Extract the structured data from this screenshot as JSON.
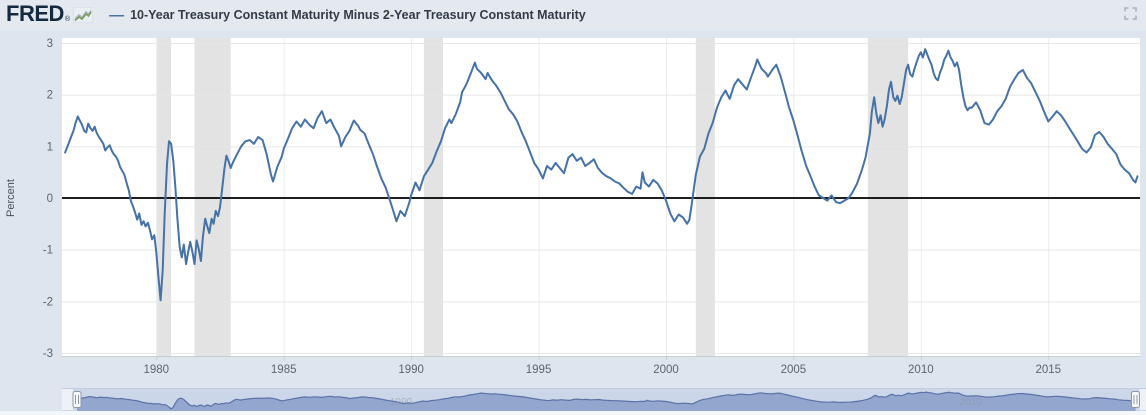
{
  "header": {
    "logo_text": "FRED",
    "logo_reg": "®",
    "legend_dash": "—",
    "title": "10-Year Treasury Constant Maturity Minus 2-Year Treasury Constant Maturity",
    "icons": [
      {
        "name": "fred-sparkline-icon",
        "shape": "green-zigzag"
      },
      {
        "name": "fullscreen-icon",
        "shape": "corner-brackets"
      }
    ]
  },
  "chart_data": {
    "type": "line",
    "title": "10-Year Treasury Constant Maturity Minus 2-Year Treasury Constant Maturity",
    "xlabel": "",
    "ylabel": "Percent",
    "ylim": [
      -3,
      3
    ],
    "xlim": [
      1976.3,
      2018.6
    ],
    "y_ticks": [
      3,
      2,
      1,
      0,
      -1,
      -2,
      -3
    ],
    "x_ticks": [
      1980,
      1985,
      1990,
      1995,
      2000,
      2005,
      2010,
      2015
    ],
    "grid": true,
    "zero_line": true,
    "legend_position": "top-left",
    "colors": {
      "series": "#4572a7",
      "recession_band": "#e3e3e3",
      "zero_line": "#000000",
      "grid_h": "#e6e6e6",
      "grid_v": "#ececec",
      "axis_line": "#c9ced4",
      "tick_text": "#606469",
      "plot_bg": "#ffffff",
      "page_bg": "#dde5ef"
    },
    "recessions": [
      [
        1980.0,
        1980.58
      ],
      [
        1981.5,
        1982.92
      ],
      [
        1990.5,
        1991.25
      ],
      [
        2001.17,
        2001.92
      ],
      [
        2007.92,
        2009.5
      ]
    ],
    "points": [
      [
        1976.42,
        0.88
      ],
      [
        1976.5,
        0.98
      ],
      [
        1976.58,
        1.08
      ],
      [
        1976.67,
        1.2
      ],
      [
        1976.75,
        1.3
      ],
      [
        1976.83,
        1.45
      ],
      [
        1976.92,
        1.58
      ],
      [
        1977.0,
        1.5
      ],
      [
        1977.08,
        1.42
      ],
      [
        1977.17,
        1.3
      ],
      [
        1977.25,
        1.27
      ],
      [
        1977.33,
        1.44
      ],
      [
        1977.42,
        1.35
      ],
      [
        1977.5,
        1.3
      ],
      [
        1977.58,
        1.38
      ],
      [
        1977.67,
        1.25
      ],
      [
        1977.75,
        1.18
      ],
      [
        1977.83,
        1.12
      ],
      [
        1977.92,
        1.05
      ],
      [
        1978.0,
        0.92
      ],
      [
        1978.08,
        0.98
      ],
      [
        1978.17,
        1.02
      ],
      [
        1978.25,
        0.92
      ],
      [
        1978.33,
        0.85
      ],
      [
        1978.42,
        0.8
      ],
      [
        1978.5,
        0.72
      ],
      [
        1978.58,
        0.6
      ],
      [
        1978.67,
        0.52
      ],
      [
        1978.75,
        0.45
      ],
      [
        1978.83,
        0.3
      ],
      [
        1978.92,
        0.15
      ],
      [
        1979.0,
        -0.05
      ],
      [
        1979.08,
        -0.15
      ],
      [
        1979.17,
        -0.28
      ],
      [
        1979.25,
        -0.42
      ],
      [
        1979.33,
        -0.3
      ],
      [
        1979.42,
        -0.52
      ],
      [
        1979.5,
        -0.45
      ],
      [
        1979.58,
        -0.55
      ],
      [
        1979.67,
        -0.48
      ],
      [
        1979.75,
        -0.62
      ],
      [
        1979.83,
        -0.8
      ],
      [
        1979.92,
        -0.72
      ],
      [
        1980.0,
        -1.05
      ],
      [
        1980.08,
        -1.5
      ],
      [
        1980.17,
        -1.98
      ],
      [
        1980.25,
        -1.4
      ],
      [
        1980.33,
        -0.3
      ],
      [
        1980.42,
        0.65
      ],
      [
        1980.5,
        1.1
      ],
      [
        1980.58,
        1.05
      ],
      [
        1980.67,
        0.7
      ],
      [
        1980.75,
        0.2
      ],
      [
        1980.83,
        -0.4
      ],
      [
        1980.92,
        -0.95
      ],
      [
        1981.0,
        -1.15
      ],
      [
        1981.08,
        -0.9
      ],
      [
        1981.17,
        -1.28
      ],
      [
        1981.25,
        -1.05
      ],
      [
        1981.33,
        -0.85
      ],
      [
        1981.42,
        -1.05
      ],
      [
        1981.5,
        -1.28
      ],
      [
        1981.58,
        -0.82
      ],
      [
        1981.67,
        -1.0
      ],
      [
        1981.75,
        -1.22
      ],
      [
        1981.83,
        -0.75
      ],
      [
        1981.92,
        -0.4
      ],
      [
        1982.0,
        -0.55
      ],
      [
        1982.08,
        -0.68
      ],
      [
        1982.17,
        -0.4
      ],
      [
        1982.25,
        -0.5
      ],
      [
        1982.33,
        -0.25
      ],
      [
        1982.42,
        -0.35
      ],
      [
        1982.5,
        -0.18
      ],
      [
        1982.58,
        0.15
      ],
      [
        1982.67,
        0.55
      ],
      [
        1982.75,
        0.82
      ],
      [
        1982.83,
        0.72
      ],
      [
        1982.92,
        0.58
      ],
      [
        1983.0,
        0.68
      ],
      [
        1983.17,
        0.85
      ],
      [
        1983.33,
        1.0
      ],
      [
        1983.5,
        1.1
      ],
      [
        1983.67,
        1.12
      ],
      [
        1983.83,
        1.05
      ],
      [
        1984.0,
        1.18
      ],
      [
        1984.17,
        1.12
      ],
      [
        1984.33,
        0.85
      ],
      [
        1984.5,
        0.45
      ],
      [
        1984.58,
        0.32
      ],
      [
        1984.75,
        0.6
      ],
      [
        1984.92,
        0.8
      ],
      [
        1985.0,
        0.95
      ],
      [
        1985.17,
        1.15
      ],
      [
        1985.33,
        1.35
      ],
      [
        1985.5,
        1.48
      ],
      [
        1985.67,
        1.38
      ],
      [
        1985.83,
        1.52
      ],
      [
        1986.0,
        1.42
      ],
      [
        1986.17,
        1.35
      ],
      [
        1986.33,
        1.55
      ],
      [
        1986.5,
        1.68
      ],
      [
        1986.67,
        1.45
      ],
      [
        1986.83,
        1.52
      ],
      [
        1987.0,
        1.35
      ],
      [
        1987.17,
        1.2
      ],
      [
        1987.25,
        1.0
      ],
      [
        1987.42,
        1.18
      ],
      [
        1987.58,
        1.3
      ],
      [
        1987.75,
        1.5
      ],
      [
        1987.92,
        1.4
      ],
      [
        1988.0,
        1.32
      ],
      [
        1988.17,
        1.25
      ],
      [
        1988.33,
        1.05
      ],
      [
        1988.5,
        0.85
      ],
      [
        1988.67,
        0.6
      ],
      [
        1988.83,
        0.38
      ],
      [
        1989.0,
        0.2
      ],
      [
        1989.17,
        -0.05
      ],
      [
        1989.33,
        -0.3
      ],
      [
        1989.42,
        -0.45
      ],
      [
        1989.58,
        -0.25
      ],
      [
        1989.75,
        -0.35
      ],
      [
        1989.92,
        -0.1
      ],
      [
        1990.0,
        0.05
      ],
      [
        1990.17,
        0.3
      ],
      [
        1990.33,
        0.15
      ],
      [
        1990.5,
        0.42
      ],
      [
        1990.67,
        0.55
      ],
      [
        1990.83,
        0.68
      ],
      [
        1991.0,
        0.9
      ],
      [
        1991.17,
        1.1
      ],
      [
        1991.33,
        1.35
      ],
      [
        1991.5,
        1.52
      ],
      [
        1991.58,
        1.45
      ],
      [
        1991.75,
        1.62
      ],
      [
        1991.92,
        1.85
      ],
      [
        1992.0,
        2.05
      ],
      [
        1992.17,
        2.2
      ],
      [
        1992.33,
        2.4
      ],
      [
        1992.5,
        2.62
      ],
      [
        1992.58,
        2.5
      ],
      [
        1992.75,
        2.42
      ],
      [
        1992.92,
        2.3
      ],
      [
        1993.0,
        2.42
      ],
      [
        1993.17,
        2.28
      ],
      [
        1993.33,
        2.18
      ],
      [
        1993.5,
        2.05
      ],
      [
        1993.67,
        1.88
      ],
      [
        1993.83,
        1.72
      ],
      [
        1994.0,
        1.62
      ],
      [
        1994.17,
        1.48
      ],
      [
        1994.33,
        1.28
      ],
      [
        1994.5,
        1.1
      ],
      [
        1994.67,
        0.88
      ],
      [
        1994.83,
        0.68
      ],
      [
        1995.0,
        0.55
      ],
      [
        1995.17,
        0.38
      ],
      [
        1995.33,
        0.62
      ],
      [
        1995.5,
        0.55
      ],
      [
        1995.67,
        0.68
      ],
      [
        1995.83,
        0.58
      ],
      [
        1996.0,
        0.48
      ],
      [
        1996.17,
        0.78
      ],
      [
        1996.33,
        0.85
      ],
      [
        1996.5,
        0.72
      ],
      [
        1996.67,
        0.78
      ],
      [
        1996.83,
        0.62
      ],
      [
        1997.0,
        0.68
      ],
      [
        1997.17,
        0.75
      ],
      [
        1997.33,
        0.58
      ],
      [
        1997.5,
        0.48
      ],
      [
        1997.67,
        0.42
      ],
      [
        1997.83,
        0.38
      ],
      [
        1998.0,
        0.32
      ],
      [
        1998.17,
        0.28
      ],
      [
        1998.33,
        0.2
      ],
      [
        1998.5,
        0.12
      ],
      [
        1998.67,
        0.08
      ],
      [
        1998.83,
        0.22
      ],
      [
        1999.0,
        0.18
      ],
      [
        1999.08,
        0.5
      ],
      [
        1999.17,
        0.3
      ],
      [
        1999.33,
        0.22
      ],
      [
        1999.5,
        0.35
      ],
      [
        1999.67,
        0.28
      ],
      [
        1999.83,
        0.15
      ],
      [
        2000.0,
        -0.05
      ],
      [
        2000.17,
        -0.3
      ],
      [
        2000.33,
        -0.45
      ],
      [
        2000.5,
        -0.32
      ],
      [
        2000.67,
        -0.38
      ],
      [
        2000.83,
        -0.5
      ],
      [
        2000.92,
        -0.42
      ],
      [
        2001.0,
        -0.15
      ],
      [
        2001.17,
        0.45
      ],
      [
        2001.33,
        0.8
      ],
      [
        2001.5,
        0.95
      ],
      [
        2001.67,
        1.25
      ],
      [
        2001.83,
        1.45
      ],
      [
        2002.0,
        1.75
      ],
      [
        2002.17,
        1.95
      ],
      [
        2002.33,
        2.08
      ],
      [
        2002.5,
        1.92
      ],
      [
        2002.67,
        2.18
      ],
      [
        2002.83,
        2.3
      ],
      [
        2003.0,
        2.2
      ],
      [
        2003.17,
        2.1
      ],
      [
        2003.33,
        2.32
      ],
      [
        2003.5,
        2.55
      ],
      [
        2003.58,
        2.68
      ],
      [
        2003.75,
        2.5
      ],
      [
        2003.92,
        2.42
      ],
      [
        2004.0,
        2.35
      ],
      [
        2004.17,
        2.48
      ],
      [
        2004.33,
        2.58
      ],
      [
        2004.5,
        2.35
      ],
      [
        2004.67,
        2.05
      ],
      [
        2004.83,
        1.75
      ],
      [
        2005.0,
        1.5
      ],
      [
        2005.17,
        1.2
      ],
      [
        2005.33,
        0.9
      ],
      [
        2005.5,
        0.62
      ],
      [
        2005.67,
        0.42
      ],
      [
        2005.83,
        0.22
      ],
      [
        2006.0,
        0.05
      ],
      [
        2006.17,
        0.0
      ],
      [
        2006.33,
        -0.05
      ],
      [
        2006.5,
        0.05
      ],
      [
        2006.67,
        -0.08
      ],
      [
        2006.83,
        -0.1
      ],
      [
        2007.0,
        -0.05
      ],
      [
        2007.17,
        0.0
      ],
      [
        2007.33,
        0.12
      ],
      [
        2007.5,
        0.28
      ],
      [
        2007.67,
        0.52
      ],
      [
        2007.83,
        0.78
      ],
      [
        2008.0,
        1.25
      ],
      [
        2008.08,
        1.68
      ],
      [
        2008.17,
        1.95
      ],
      [
        2008.25,
        1.65
      ],
      [
        2008.33,
        1.45
      ],
      [
        2008.42,
        1.6
      ],
      [
        2008.5,
        1.38
      ],
      [
        2008.58,
        1.52
      ],
      [
        2008.67,
        1.78
      ],
      [
        2008.75,
        2.1
      ],
      [
        2008.83,
        2.25
      ],
      [
        2008.92,
        1.95
      ],
      [
        2009.0,
        1.88
      ],
      [
        2009.08,
        1.98
      ],
      [
        2009.17,
        1.82
      ],
      [
        2009.25,
        1.95
      ],
      [
        2009.33,
        2.2
      ],
      [
        2009.42,
        2.48
      ],
      [
        2009.5,
        2.58
      ],
      [
        2009.58,
        2.4
      ],
      [
        2009.67,
        2.35
      ],
      [
        2009.75,
        2.5
      ],
      [
        2009.83,
        2.62
      ],
      [
        2009.92,
        2.75
      ],
      [
        2010.0,
        2.82
      ],
      [
        2010.08,
        2.72
      ],
      [
        2010.17,
        2.88
      ],
      [
        2010.25,
        2.78
      ],
      [
        2010.33,
        2.68
      ],
      [
        2010.42,
        2.58
      ],
      [
        2010.5,
        2.42
      ],
      [
        2010.58,
        2.32
      ],
      [
        2010.67,
        2.28
      ],
      [
        2010.75,
        2.42
      ],
      [
        2010.83,
        2.52
      ],
      [
        2010.92,
        2.68
      ],
      [
        2011.0,
        2.75
      ],
      [
        2011.08,
        2.85
      ],
      [
        2011.17,
        2.72
      ],
      [
        2011.25,
        2.65
      ],
      [
        2011.33,
        2.55
      ],
      [
        2011.42,
        2.62
      ],
      [
        2011.5,
        2.48
      ],
      [
        2011.58,
        2.2
      ],
      [
        2011.67,
        1.95
      ],
      [
        2011.75,
        1.78
      ],
      [
        2011.83,
        1.7
      ],
      [
        2011.92,
        1.75
      ],
      [
        2012.0,
        1.75
      ],
      [
        2012.17,
        1.85
      ],
      [
        2012.33,
        1.7
      ],
      [
        2012.5,
        1.45
      ],
      [
        2012.67,
        1.42
      ],
      [
        2012.83,
        1.52
      ],
      [
        2013.0,
        1.68
      ],
      [
        2013.17,
        1.78
      ],
      [
        2013.33,
        1.92
      ],
      [
        2013.5,
        2.15
      ],
      [
        2013.67,
        2.3
      ],
      [
        2013.83,
        2.42
      ],
      [
        2014.0,
        2.48
      ],
      [
        2014.17,
        2.32
      ],
      [
        2014.33,
        2.22
      ],
      [
        2014.5,
        2.05
      ],
      [
        2014.67,
        1.88
      ],
      [
        2014.83,
        1.68
      ],
      [
        2015.0,
        1.48
      ],
      [
        2015.17,
        1.58
      ],
      [
        2015.33,
        1.68
      ],
      [
        2015.5,
        1.6
      ],
      [
        2015.67,
        1.48
      ],
      [
        2015.83,
        1.35
      ],
      [
        2016.0,
        1.22
      ],
      [
        2016.17,
        1.08
      ],
      [
        2016.33,
        0.95
      ],
      [
        2016.5,
        0.88
      ],
      [
        2016.67,
        0.98
      ],
      [
        2016.83,
        1.22
      ],
      [
        2017.0,
        1.28
      ],
      [
        2017.17,
        1.18
      ],
      [
        2017.33,
        1.05
      ],
      [
        2017.5,
        0.95
      ],
      [
        2017.67,
        0.85
      ],
      [
        2017.83,
        0.65
      ],
      [
        2018.0,
        0.55
      ],
      [
        2018.17,
        0.48
      ],
      [
        2018.33,
        0.35
      ],
      [
        2018.42,
        0.3
      ],
      [
        2018.5,
        0.42
      ]
    ]
  },
  "navigator": {
    "selected_range": [
      1976.42,
      2018.5
    ],
    "value_range": [
      -2.3,
      3.2
    ],
    "labels": [
      {
        "text": "1990",
        "x": 401
      },
      {
        "text": "2010",
        "x": 971
      }
    ],
    "colors": {
      "track_bg": "#ccd6e9",
      "area_fill": "#8da1cb",
      "area_line": "#5a72a7",
      "mask": "#eef2f7",
      "handle_fill": "#f6f8fa",
      "handle_stroke": "#8d98a7",
      "label_text": "#8a919c"
    }
  }
}
